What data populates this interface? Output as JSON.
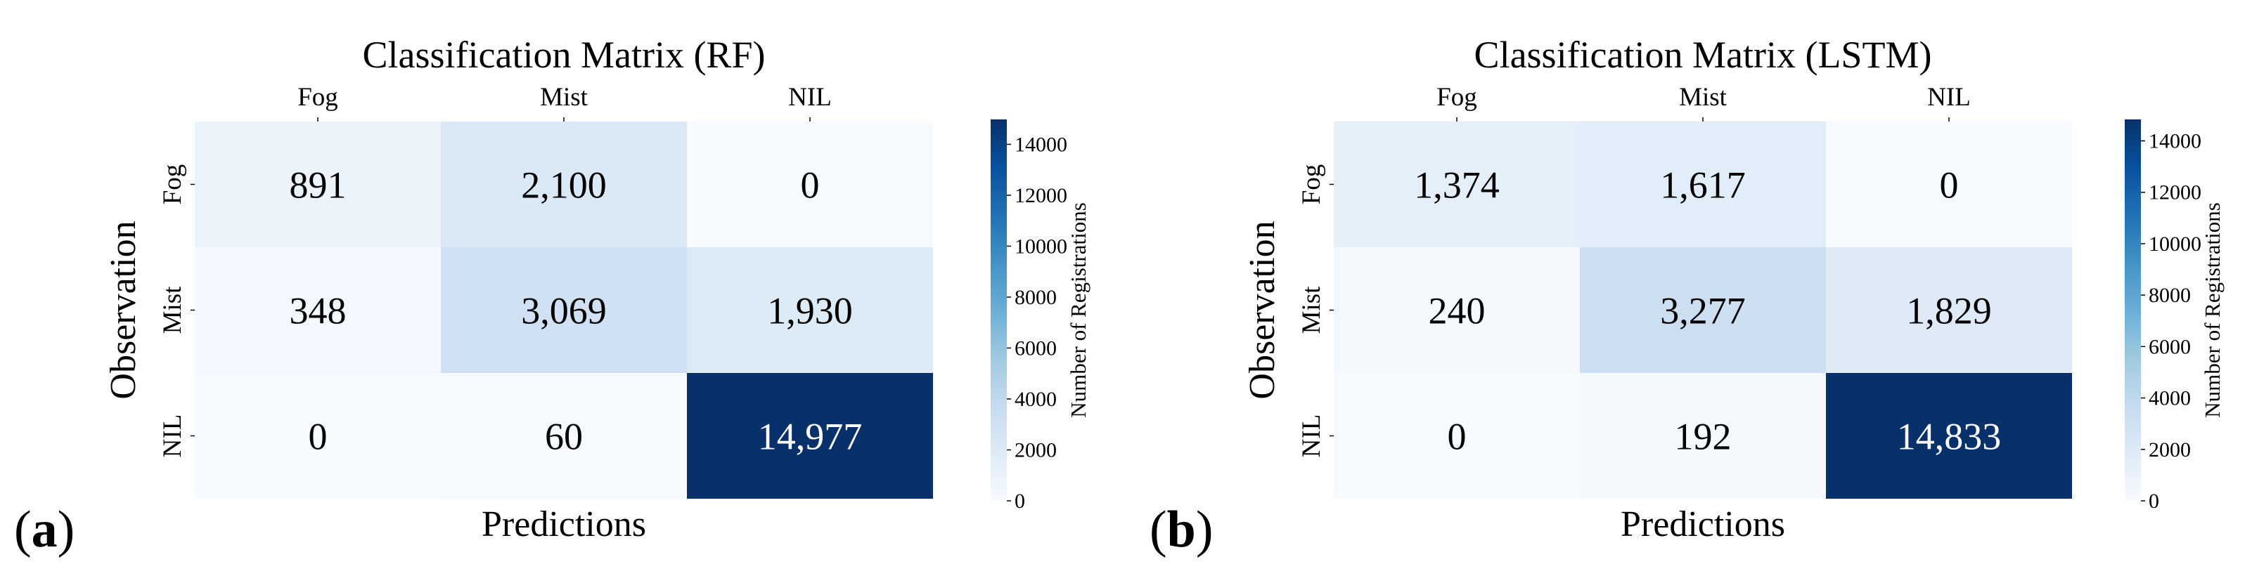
{
  "panels": [
    {
      "label_open": "(",
      "label_letter": "a",
      "label_close": ")"
    },
    {
      "label_open": "(",
      "label_letter": "b",
      "label_close": ")"
    }
  ],
  "chart_data": [
    {
      "type": "heatmap",
      "title": "Classification Matrix (RF)",
      "xlabel": "Predictions",
      "ylabel": "Observation",
      "x_categories": [
        "Fog",
        "Mist",
        "NIL"
      ],
      "y_categories": [
        "Fog",
        "Mist",
        "NIL"
      ],
      "values": [
        [
          891,
          2100,
          0
        ],
        [
          348,
          3069,
          1930
        ],
        [
          0,
          60,
          14977
        ]
      ],
      "cell_labels": [
        [
          "891",
          "2,100",
          "0"
        ],
        [
          "348",
          "3,069",
          "1,930"
        ],
        [
          "0",
          "60",
          "14,977"
        ]
      ],
      "colorbar": {
        "label": "Number of Registrations",
        "range": [
          0,
          14977
        ],
        "ticks": [
          0,
          2000,
          4000,
          6000,
          8000,
          10000,
          12000,
          14000
        ],
        "colormap": "Blues",
        "low_color": "#f7fbff",
        "high_color": "#08306b"
      }
    },
    {
      "type": "heatmap",
      "title": "Classification Matrix (LSTM)",
      "xlabel": "Predictions",
      "ylabel": "Observation",
      "x_categories": [
        "Fog",
        "Mist",
        "NIL"
      ],
      "y_categories": [
        "Fog",
        "Mist",
        "NIL"
      ],
      "values": [
        [
          1374,
          1617,
          0
        ],
        [
          240,
          3277,
          1829
        ],
        [
          0,
          192,
          14833
        ]
      ],
      "cell_labels": [
        [
          "1,374",
          "1,617",
          "0"
        ],
        [
          "240",
          "3,277",
          "1,829"
        ],
        [
          "0",
          "192",
          "14,833"
        ]
      ],
      "colorbar": {
        "label": "Number of Registrations",
        "range": [
          0,
          14833
        ],
        "ticks": [
          0,
          2000,
          4000,
          6000,
          8000,
          10000,
          12000,
          14000
        ],
        "colormap": "Blues",
        "low_color": "#f7fbff",
        "high_color": "#08306b"
      }
    }
  ]
}
